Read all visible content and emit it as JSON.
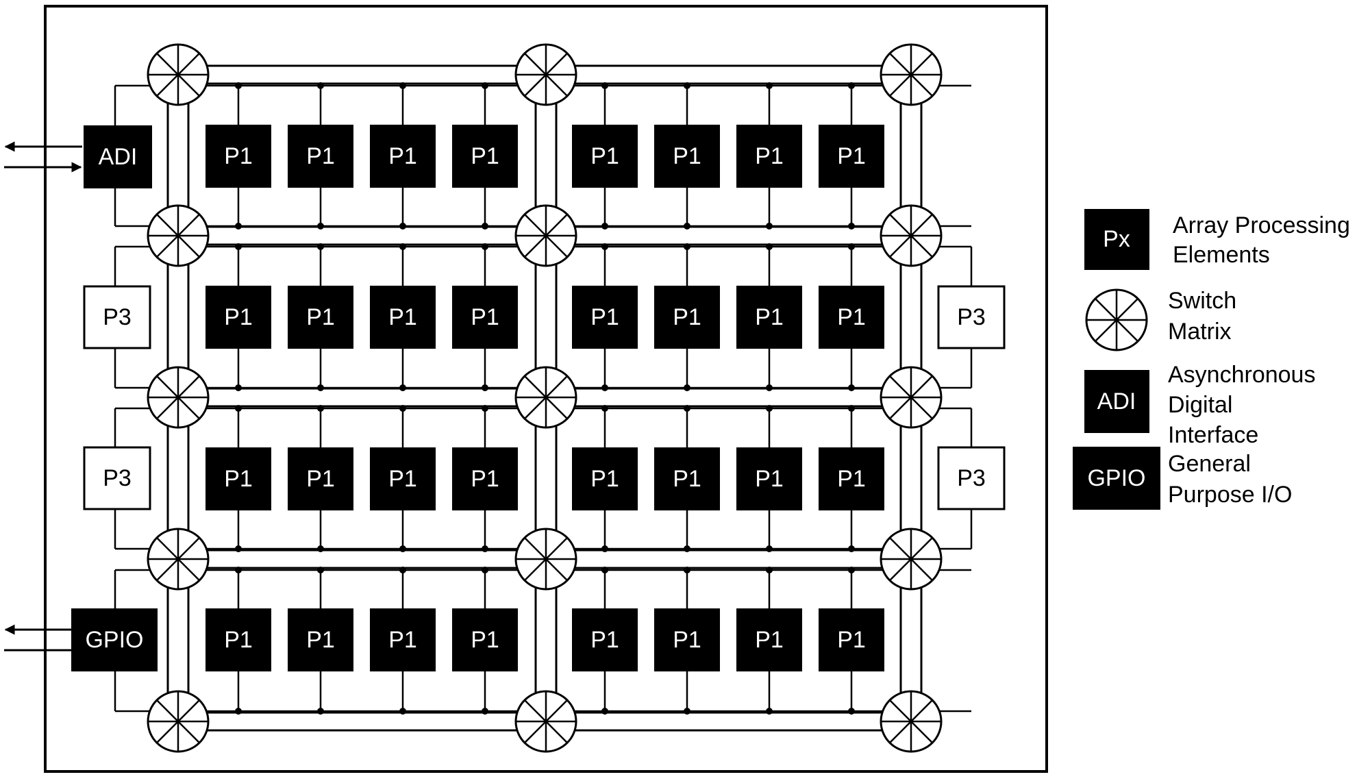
{
  "blocks": {
    "p1_label": "P1",
    "p3_label": "P3",
    "adi_label": "ADI",
    "gpio_label": "GPIO"
  },
  "legend": {
    "px": {
      "box": "Px",
      "lines": [
        "Array Processing",
        "Elements"
      ]
    },
    "switch": {
      "lines": [
        "Switch",
        "Matrix"
      ]
    },
    "adi": {
      "box": "ADI",
      "lines": [
        "Asynchronous",
        "Digital",
        "Interface"
      ]
    },
    "gpio": {
      "box": "GPIO",
      "lines": [
        "General",
        "Purpose I/O"
      ]
    }
  },
  "colors": {
    "block_fill": "#000000",
    "block_text": "#ffffff",
    "line": "#000000"
  }
}
